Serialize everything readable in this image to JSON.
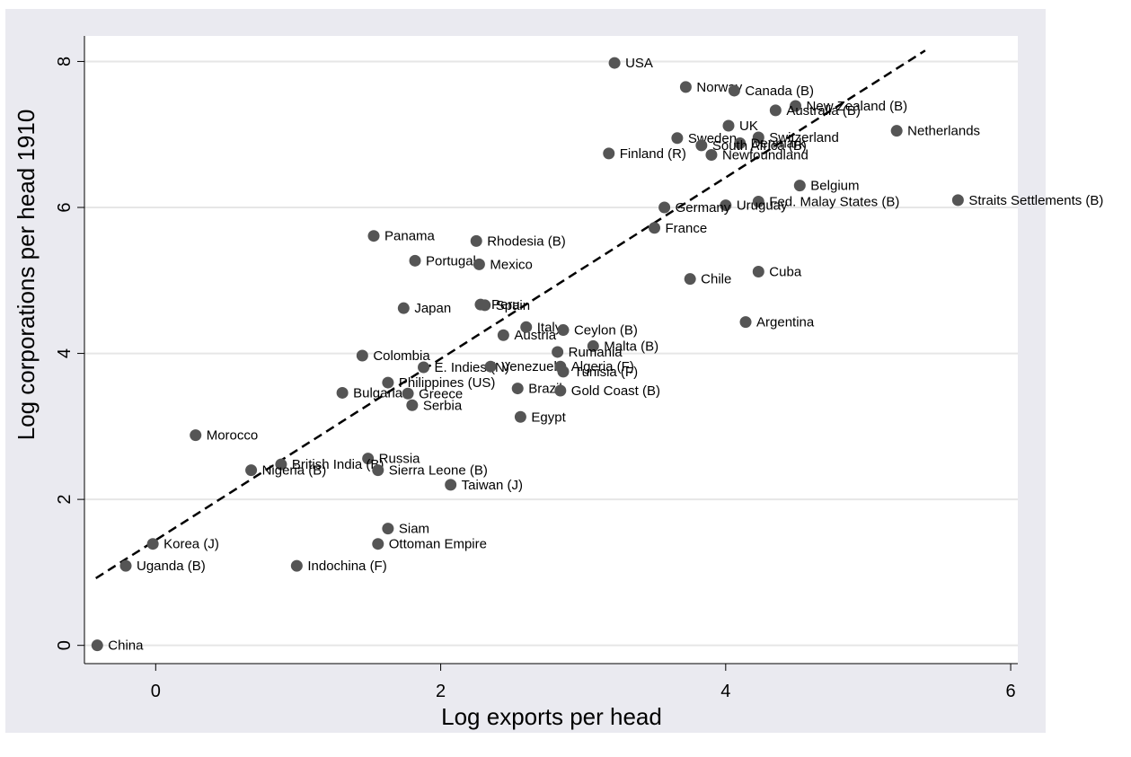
{
  "chart_data": {
    "type": "scatter",
    "xlabel": "Log exports per head",
    "ylabel": "Log corporations per head 1910",
    "xlim": [
      -0.5,
      6.05
    ],
    "ylim": [
      -0.25,
      8.35
    ],
    "xticks": [
      "0",
      "2",
      "4",
      "6"
    ],
    "yticks": [
      "0",
      "2",
      "4",
      "6",
      "8"
    ],
    "grid": "horizontal",
    "legend": "none",
    "colors": {
      "outer_background": "#eaeaf0",
      "plot_background": "#ffffff",
      "gridline": "#e6e6e6",
      "marker": "#555555",
      "fit_line": "#000000"
    },
    "fit_line": {
      "style": "dashed",
      "x": [
        -0.42,
        5.4
      ],
      "y": [
        0.92,
        8.15
      ]
    },
    "points": [
      {
        "label": "USA",
        "x": 3.22,
        "y": 7.98
      },
      {
        "label": "Norway",
        "x": 3.72,
        "y": 7.65
      },
      {
        "label": "Canada (B)",
        "x": 4.06,
        "y": 7.6
      },
      {
        "label": "New Zealand (B)",
        "x": 4.49,
        "y": 7.39
      },
      {
        "label": "Australia (B)",
        "x": 4.35,
        "y": 7.33
      },
      {
        "label": "UK",
        "x": 4.02,
        "y": 7.12
      },
      {
        "label": "Netherlands",
        "x": 5.2,
        "y": 7.05
      },
      {
        "label": "Sweden",
        "x": 3.66,
        "y": 6.95
      },
      {
        "label": "Switzerland",
        "x": 4.23,
        "y": 6.96
      },
      {
        "label": "Denmark",
        "x": 4.1,
        "y": 6.88
      },
      {
        "label": "South Africa (B)",
        "x": 3.83,
        "y": 6.85
      },
      {
        "label": "Newfoundland",
        "x": 3.9,
        "y": 6.72
      },
      {
        "label": "Finland (R)",
        "x": 3.18,
        "y": 6.74
      },
      {
        "label": "Belgium",
        "x": 4.52,
        "y": 6.3
      },
      {
        "label": "Straits Settlements (B)",
        "x": 5.63,
        "y": 6.1
      },
      {
        "label": "Fed. Malay States (B)",
        "x": 4.23,
        "y": 6.08
      },
      {
        "label": "Uruguay",
        "x": 4.0,
        "y": 6.03
      },
      {
        "label": "Germany",
        "x": 3.57,
        "y": 6.0
      },
      {
        "label": "France",
        "x": 3.5,
        "y": 5.72
      },
      {
        "label": "Panama",
        "x": 1.53,
        "y": 5.61
      },
      {
        "label": "Rhodesia (B)",
        "x": 2.25,
        "y": 5.54
      },
      {
        "label": "Portugal",
        "x": 1.82,
        "y": 5.27
      },
      {
        "label": "Mexico",
        "x": 2.27,
        "y": 5.22
      },
      {
        "label": "Cuba",
        "x": 4.23,
        "y": 5.12
      },
      {
        "label": "Chile",
        "x": 3.75,
        "y": 5.02
      },
      {
        "label": "Peru",
        "x": 2.28,
        "y": 4.67
      },
      {
        "label": "Spain",
        "x": 2.31,
        "y": 4.66
      },
      {
        "label": "Japan",
        "x": 1.74,
        "y": 4.62
      },
      {
        "label": "Argentina",
        "x": 4.14,
        "y": 4.43
      },
      {
        "label": "Italy",
        "x": 2.6,
        "y": 4.36
      },
      {
        "label": "Ceylon (B)",
        "x": 2.86,
        "y": 4.32
      },
      {
        "label": "Austria",
        "x": 2.44,
        "y": 4.25
      },
      {
        "label": "Malta (B)",
        "x": 3.07,
        "y": 4.1
      },
      {
        "label": "Rumania",
        "x": 2.82,
        "y": 4.02
      },
      {
        "label": "Colombia",
        "x": 1.45,
        "y": 3.97
      },
      {
        "label": "E. Indies (N)",
        "x": 1.88,
        "y": 3.81
      },
      {
        "label": "Venezuela",
        "x": 2.35,
        "y": 3.82
      },
      {
        "label": "Algeria (F)",
        "x": 2.84,
        "y": 3.82
      },
      {
        "label": "Tunisia (F)",
        "x": 2.86,
        "y": 3.75
      },
      {
        "label": "Philippines (US)",
        "x": 1.63,
        "y": 3.6
      },
      {
        "label": "Brazil",
        "x": 2.54,
        "y": 3.52
      },
      {
        "label": "Gold Coast (B)",
        "x": 2.84,
        "y": 3.49
      },
      {
        "label": "Bulgaria",
        "x": 1.31,
        "y": 3.46
      },
      {
        "label": "Greece",
        "x": 1.77,
        "y": 3.45
      },
      {
        "label": "Serbia",
        "x": 1.8,
        "y": 3.29
      },
      {
        "label": "Egypt",
        "x": 2.56,
        "y": 3.13
      },
      {
        "label": "Morocco",
        "x": 0.28,
        "y": 2.88
      },
      {
        "label": "Russia",
        "x": 1.49,
        "y": 2.56
      },
      {
        "label": "British India (B)",
        "x": 0.88,
        "y": 2.48
      },
      {
        "label": "Sierra Leone (B)",
        "x": 1.56,
        "y": 2.4
      },
      {
        "label": "Nigeria (B)",
        "x": 0.67,
        "y": 2.4
      },
      {
        "label": "Taiwan (J)",
        "x": 2.07,
        "y": 2.2
      },
      {
        "label": "Siam",
        "x": 1.63,
        "y": 1.6
      },
      {
        "label": "Korea (J)",
        "x": -0.02,
        "y": 1.39
      },
      {
        "label": "Ottoman Empire",
        "x": 1.56,
        "y": 1.39
      },
      {
        "label": "Uganda (B)",
        "x": -0.21,
        "y": 1.09
      },
      {
        "label": "Indochina (F)",
        "x": 0.99,
        "y": 1.09
      },
      {
        "label": "China",
        "x": -0.41,
        "y": 0.0
      }
    ]
  }
}
